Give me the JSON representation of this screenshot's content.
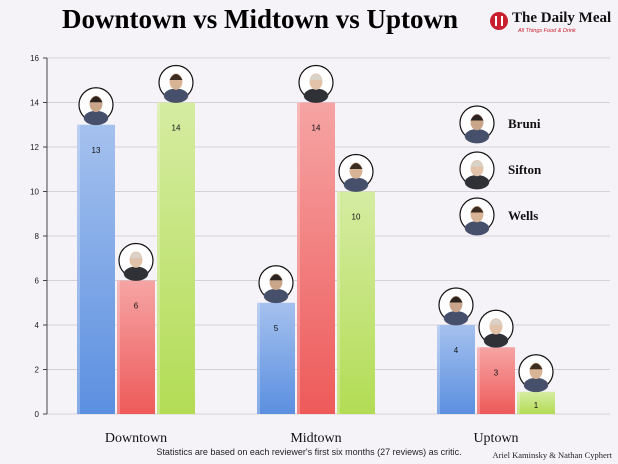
{
  "title": "Downtown vs Midtown vs Uptown",
  "brand": {
    "name": "The Daily Meal",
    "tagline": "All Things Food & Drink"
  },
  "footnote": "Statistics are based on each reviewer's first six months (27 reviews) as critic.",
  "credit": "Ariel Kaminsky & Nathan Cyphert",
  "colors": {
    "bruni": "#5b8fe0",
    "sifton": "#ee5a5a",
    "wells": "#b3dc55",
    "axis": "#444444"
  },
  "chart_data": {
    "type": "bar",
    "categories": [
      "Downtown",
      "Midtown",
      "Uptown"
    ],
    "series": [
      {
        "name": "Bruni",
        "values": [
          13,
          5,
          4
        ]
      },
      {
        "name": "Sifton",
        "values": [
          6,
          14,
          3
        ]
      },
      {
        "name": "Wells",
        "values": [
          14,
          10,
          1
        ]
      }
    ],
    "ylim": [
      0,
      16
    ],
    "yticks": [
      0,
      2,
      4,
      6,
      8,
      10,
      12,
      14,
      16
    ],
    "grid": true,
    "legend": "right",
    "data_labels": true
  }
}
